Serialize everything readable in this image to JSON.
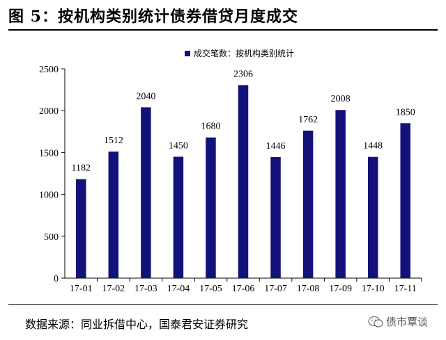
{
  "header": {
    "title": "图 5：按机构类别统计债券借贷月度成交"
  },
  "footer": {
    "source": "数据来源：同业拆借中心，国泰君安证券研究",
    "watermark": "债市覃谈"
  },
  "colors": {
    "bar": "#12127a",
    "axis": "#000000"
  },
  "chart_data": {
    "type": "bar",
    "title": "",
    "xlabel": "",
    "ylabel": "",
    "legend_position": "top-center",
    "grid": false,
    "categories": [
      "17-01",
      "17-02",
      "17-03",
      "17-04",
      "17-05",
      "17-06",
      "17-07",
      "17-08",
      "17-09",
      "17-10",
      "17-11"
    ],
    "series": [
      {
        "name": "成交笔数：按机构类别统计",
        "values": [
          1182,
          1512,
          2040,
          1450,
          1680,
          2306,
          1446,
          1762,
          2008,
          1448,
          1850
        ]
      }
    ],
    "ylim": [
      0,
      2500
    ],
    "yticks": [
      0,
      500,
      1000,
      1500,
      2000,
      2500
    ]
  }
}
